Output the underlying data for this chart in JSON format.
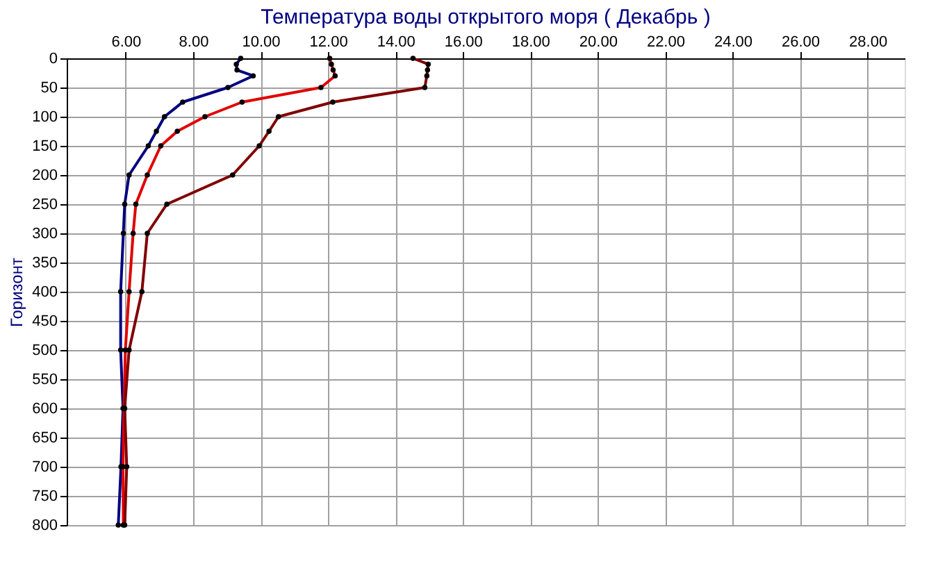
{
  "chart_data": {
    "type": "line",
    "title": "Температура воды открытого моря     ( Декабрь )",
    "ylabel": "Горизонт",
    "series": [
      {
        "color": "#000080",
        "x": [
          9.41,
          9.28,
          9.3,
          9.78,
          9.03,
          7.69,
          7.15,
          6.91,
          6.67,
          6.1,
          5.97,
          5.93,
          5.85,
          5.85,
          5.92,
          5.86,
          5.78
        ],
        "values": [
          0,
          10,
          20,
          30,
          50,
          75,
          100,
          125,
          150,
          200,
          250,
          300,
          400,
          500,
          600,
          700,
          800
        ]
      },
      {
        "color": "#e00000",
        "x": [
          12.05,
          12.1,
          12.15,
          12.21,
          11.79,
          9.45,
          8.35,
          7.53,
          7.04,
          6.64,
          6.3,
          6.22,
          6.1,
          5.99,
          5.95,
          5.92,
          5.93
        ],
        "values": [
          0,
          10,
          20,
          30,
          50,
          75,
          100,
          125,
          150,
          200,
          250,
          300,
          400,
          500,
          600,
          700,
          800
        ]
      },
      {
        "color": "#800000",
        "x": [
          14.52,
          14.97,
          14.95,
          14.93,
          14.87,
          12.14,
          10.53,
          10.25,
          9.96,
          9.17,
          7.22,
          6.64,
          6.48,
          6.1,
          5.97,
          6.03,
          5.97
        ],
        "values": [
          0,
          10,
          20,
          30,
          50,
          75,
          100,
          125,
          150,
          200,
          250,
          300,
          400,
          500,
          600,
          700,
          800
        ]
      }
    ],
    "xlim": [
      4.25,
      29.1
    ],
    "xticks": [
      {
        "value": 6,
        "label": "6.00"
      },
      {
        "value": 8,
        "label": "8.00"
      },
      {
        "value": 10,
        "label": "10.00"
      },
      {
        "value": 12,
        "label": "12.00"
      },
      {
        "value": 14,
        "label": "14.00"
      },
      {
        "value": 16,
        "label": "16.00"
      },
      {
        "value": 18,
        "label": "18.00"
      },
      {
        "value": 20,
        "label": "20.00"
      },
      {
        "value": 22,
        "label": "22.00"
      },
      {
        "value": 24,
        "label": "24.00"
      },
      {
        "value": 26,
        "label": "26.00"
      },
      {
        "value": 28,
        "label": "28.00"
      }
    ],
    "ylim": [
      800,
      0
    ],
    "yticks": [
      0,
      50,
      100,
      150,
      200,
      250,
      300,
      350,
      400,
      450,
      500,
      550,
      600,
      650,
      700,
      750,
      800
    ],
    "grid": true,
    "legend": false,
    "marker": "circle",
    "line_style": "solid"
  }
}
